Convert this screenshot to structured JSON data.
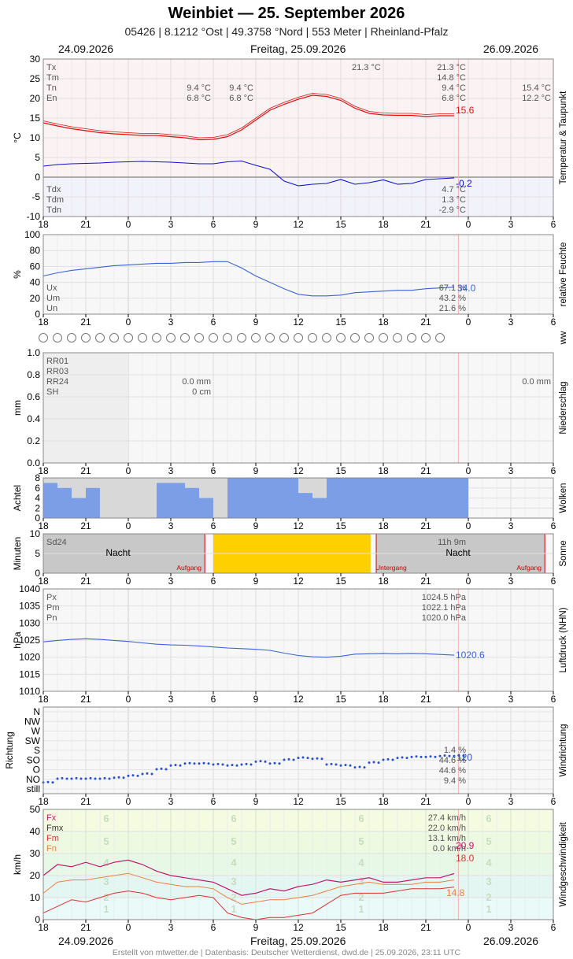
{
  "header": {
    "title": "Weinbiet  —  25. September 2026",
    "subtitle": "05426  |  8.1212 °Ost  |  49.3758 °Nord  |  553 Meter  |  Rheinland-Pfalz",
    "date_left": "24.09.2026",
    "date_center": "Freitag, 25.09.2026",
    "date_right": "26.09.2026"
  },
  "footer": "Erstellt von mtwetter.de | Datenbasis: Deutscher Wetterdienst, dwd.de | 25.09.2026, 23:11 UTC",
  "x_ticks": [
    "18",
    "21",
    "0",
    "3",
    "6",
    "9",
    "12",
    "15",
    "18",
    "21",
    "0",
    "3",
    "6"
  ],
  "colors": {
    "temp": "#e01010",
    "dew": "#1010d0",
    "hum": "#3a64d8",
    "cloud": "#7b9ee6",
    "sun": "#ffd000",
    "press": "#3a64d8",
    "wind_dir": "#2a50d0",
    "fx": "#c0186c",
    "fmx": "#c0186c",
    "fm": "#e03030",
    "fn": "#f08040"
  },
  "chart_data": [
    {
      "type": "line",
      "name": "temperature",
      "ylabel": "°C",
      "right_label": "Temperatur & Taupunkt",
      "ylim": [
        -10,
        30
      ],
      "y_ticks": [
        "30",
        "25",
        "20",
        "15",
        "10",
        "5",
        "0",
        "-5",
        "-10"
      ],
      "legend_top": [
        "Tx",
        "Tm",
        "Tn",
        "En"
      ],
      "legend_bottom": [
        "Tdx",
        "Tdm",
        "Tdn"
      ],
      "annotations": {
        "tx_mid": "21.3 °C",
        "tx": "21.3 °C",
        "tm": "14.8 °C",
        "tn": "9.4 °C",
        "en": "6.8 °C",
        "tn_prev1": "9.4 °C",
        "tn_prev2": "9.4 °C",
        "en_prev1": "6.8 °C",
        "en_prev2": "6.8 °C",
        "tn_next": "15.4 °C",
        "en_next": "12.2 °C",
        "tdx": "4.7 °C",
        "tdm": "1.3 °C",
        "tdn": "-2.9 °C",
        "last_temp": "15.6",
        "last_dew": "-0.2"
      },
      "series": [
        {
          "name": "temp",
          "x": [
            18,
            19,
            20,
            21,
            22,
            23,
            24,
            25,
            26,
            27,
            28,
            29,
            30,
            31,
            32,
            33,
            34,
            35,
            36,
            37,
            38,
            39,
            40,
            41,
            42,
            43,
            44,
            45,
            46,
            47
          ],
          "values": [
            13.8,
            13.0,
            12.3,
            11.8,
            11.3,
            11.0,
            10.8,
            10.6,
            10.6,
            10.3,
            10.0,
            9.5,
            9.6,
            10.3,
            12.0,
            14.5,
            17.0,
            18.5,
            19.8,
            20.8,
            20.5,
            19.5,
            17.5,
            16.2,
            15.8,
            15.7,
            15.7,
            15.4,
            15.6,
            15.6
          ]
        },
        {
          "name": "dew",
          "x": [
            18,
            19,
            20,
            21,
            22,
            23,
            24,
            25,
            26,
            27,
            28,
            29,
            30,
            31,
            32,
            33,
            34,
            35,
            36,
            37,
            38,
            39,
            40,
            41,
            42,
            43,
            44,
            45,
            46,
            47
          ],
          "values": [
            2.8,
            3.2,
            3.4,
            3.5,
            3.6,
            3.8,
            3.9,
            4.0,
            3.9,
            3.8,
            3.6,
            3.4,
            3.4,
            3.9,
            4.1,
            3.0,
            2.0,
            -1.0,
            -2.2,
            -1.8,
            -1.6,
            -0.6,
            -1.8,
            -1.4,
            -0.7,
            -1.8,
            -1.6,
            -0.6,
            -0.4,
            -0.2
          ]
        }
      ]
    },
    {
      "type": "line",
      "name": "humidity",
      "ylabel": "%",
      "right_label": "relative Feuchte",
      "ylim": [
        0,
        100
      ],
      "y_ticks": [
        "100",
        "80",
        "60",
        "40",
        "20",
        "0"
      ],
      "legend": [
        "Ux",
        "Um",
        "Un"
      ],
      "annotations": {
        "ux": "67.1 %",
        "um": "43.2 %",
        "un": "21.6 %",
        "last": "34.0"
      },
      "series": [
        {
          "name": "rh",
          "x": [
            18,
            19,
            20,
            21,
            22,
            23,
            24,
            25,
            26,
            27,
            28,
            29,
            30,
            31,
            32,
            33,
            34,
            35,
            36,
            37,
            38,
            39,
            40,
            41,
            42,
            43,
            44,
            45,
            46,
            47
          ],
          "values": [
            48,
            52,
            55,
            57,
            59,
            61,
            62,
            63,
            64,
            64,
            65,
            65,
            66,
            66,
            58,
            48,
            40,
            32,
            25,
            23,
            23,
            24,
            27,
            28,
            29,
            30,
            30,
            32,
            33,
            34
          ]
        }
      ]
    },
    {
      "type": "table",
      "name": "ww",
      "right_label": "ww",
      "count": 29
    },
    {
      "type": "bar",
      "name": "precipitation",
      "ylabel": "mm",
      "right_label": "Niederschlag",
      "ylim": [
        0,
        1.0
      ],
      "y_ticks": [
        "1.0",
        "0.8",
        "0.6",
        "0.4",
        "0.2",
        "0.0"
      ],
      "legend": [
        "RR01",
        "RR03",
        "RR24",
        "SH"
      ],
      "annotations": {
        "rr24": "0.0 mm",
        "sh": "0 cm",
        "rr24_next": "0.0 mm"
      }
    },
    {
      "type": "bar",
      "name": "clouds",
      "ylabel": "Achtel",
      "right_label": "Wolken",
      "ylim": [
        0,
        8
      ],
      "y_ticks": [
        "8",
        "6",
        "4",
        "2",
        "0"
      ],
      "x": [
        18,
        19,
        20,
        21,
        22,
        23,
        24,
        25,
        26,
        27,
        28,
        29,
        30,
        31,
        32,
        33,
        34,
        35,
        36,
        37,
        38,
        39,
        40,
        41,
        42,
        43,
        44,
        45,
        46,
        47
      ],
      "values": [
        7,
        6,
        4,
        6,
        0,
        0,
        0,
        0,
        7,
        7,
        6,
        4,
        0,
        8,
        8,
        8,
        8,
        8,
        5,
        4,
        8,
        8,
        8,
        8,
        8,
        8,
        8,
        8,
        8,
        8
      ]
    },
    {
      "type": "bar",
      "name": "sunshine",
      "ylabel": "Minuten",
      "right_label": "Sonne",
      "ylim": [
        0,
        10
      ],
      "y_ticks": [
        "10",
        "5",
        "0"
      ],
      "legend": [
        "Sd24"
      ],
      "annotations": {
        "night1": "Nacht",
        "night2": "Nacht",
        "sunrise": "Aufgang",
        "sunset": "Untergang",
        "sunrise2": "Aufgang",
        "sd24": "11h 9m"
      },
      "sunny_from": 30.0,
      "sunny_to": 41.1,
      "sunrise_at": 29.4,
      "sunset_at": 41.5,
      "sunrise2_at": 53.4
    },
    {
      "type": "line",
      "name": "pressure",
      "ylabel": "hPa",
      "right_label": "Luftdruck (NHN)",
      "ylim": [
        1010,
        1040
      ],
      "y_ticks": [
        "1040",
        "1035",
        "1030",
        "1025",
        "1020",
        "1015",
        "1010"
      ],
      "legend": [
        "Px",
        "Pm",
        "Pn"
      ],
      "annotations": {
        "px": "1024.5 hPa",
        "pm": "1022.1 hPa",
        "pn": "1020.0 hPa",
        "last": "1020.6"
      },
      "series": [
        {
          "name": "p",
          "x": [
            18,
            19,
            20,
            21,
            22,
            23,
            24,
            25,
            26,
            27,
            28,
            29,
            30,
            31,
            32,
            33,
            34,
            35,
            36,
            37,
            38,
            39,
            40,
            41,
            42,
            43,
            44,
            45,
            46,
            47
          ],
          "values": [
            1024.5,
            1024.9,
            1025.2,
            1025.4,
            1025.2,
            1024.9,
            1024.6,
            1024.2,
            1023.8,
            1023.6,
            1023.5,
            1023.3,
            1023.0,
            1022.7,
            1022.5,
            1022.3,
            1022.0,
            1021.2,
            1020.5,
            1020.1,
            1020.0,
            1020.3,
            1020.9,
            1021.0,
            1021.1,
            1021.0,
            1021.1,
            1021.0,
            1020.8,
            1020.6
          ]
        }
      ]
    },
    {
      "type": "scatter",
      "name": "wind_direction",
      "ylabel": "Richtung",
      "right_label": "Windrichtung",
      "y_ticks": [
        "N",
        "NW",
        "W",
        "SW",
        "S",
        "SO",
        "O",
        "NO",
        "still"
      ],
      "annotations": {
        "a": "1.4 %",
        "b": "44.6 %",
        "c": "44.6 %",
        "d": "9.4 %",
        "last": "120"
      },
      "x": [
        18,
        19,
        20,
        21,
        22,
        23,
        24,
        25,
        26,
        27,
        28,
        29,
        30,
        31,
        32,
        33,
        34,
        35,
        36,
        37,
        38,
        39,
        40,
        41,
        42,
        43,
        44,
        45,
        46,
        47
      ],
      "values": [
        0.6,
        1.0,
        1.0,
        1.0,
        1.0,
        1.1,
        1.3,
        1.5,
        2.0,
        2.4,
        2.6,
        2.6,
        2.5,
        2.4,
        2.5,
        2.8,
        2.6,
        3.0,
        3.2,
        3.1,
        2.5,
        2.4,
        2.2,
        2.7,
        3.0,
        3.2,
        3.3,
        3.3,
        3.4,
        3.4
      ]
    },
    {
      "type": "line",
      "name": "wind_speed",
      "ylabel": "km/h",
      "right_label": "Windgeschwindigkeit",
      "ylim": [
        0,
        50
      ],
      "y_ticks": [
        "50",
        "40",
        "30",
        "20",
        "10",
        "0"
      ],
      "legend": [
        "Fx",
        "Fmx",
        "Fm",
        "Fn"
      ],
      "beaufort": [
        "6",
        "5",
        "4",
        "3",
        "2",
        "1"
      ],
      "annotations": {
        "fx": "27.4 km/h",
        "fmx": "22.0 km/h",
        "fm": "13.1 km/h",
        "fn": "0.0 km/h",
        "last_fx": "20.9",
        "last_fm": "18.0",
        "last_fn": "14.8"
      },
      "series": [
        {
          "name": "Fx",
          "x": [
            18,
            19,
            20,
            21,
            22,
            23,
            24,
            25,
            26,
            27,
            28,
            29,
            30,
            31,
            32,
            33,
            34,
            35,
            36,
            37,
            38,
            39,
            40,
            41,
            42,
            43,
            44,
            45,
            46,
            47
          ],
          "values": [
            20,
            25,
            24,
            26,
            24,
            26,
            27,
            25,
            22,
            20,
            19,
            18,
            17,
            14,
            11,
            12,
            14,
            13,
            15,
            16,
            18,
            17,
            18,
            19,
            17,
            17,
            18,
            19,
            19,
            20.9
          ]
        },
        {
          "name": "Fm",
          "x": [
            18,
            19,
            20,
            21,
            22,
            23,
            24,
            25,
            26,
            27,
            28,
            29,
            30,
            31,
            32,
            33,
            34,
            35,
            36,
            37,
            38,
            39,
            40,
            41,
            42,
            43,
            44,
            45,
            46,
            47
          ],
          "values": [
            12,
            17,
            18,
            18,
            19,
            20,
            21,
            19,
            17,
            16,
            15,
            15,
            14,
            10,
            7,
            8,
            9,
            9,
            10,
            11,
            13,
            15,
            16,
            17,
            16,
            16,
            16,
            17,
            17,
            18.0
          ]
        },
        {
          "name": "Fn",
          "x": [
            18,
            19,
            20,
            21,
            22,
            23,
            24,
            25,
            26,
            27,
            28,
            29,
            30,
            31,
            32,
            33,
            34,
            35,
            36,
            37,
            38,
            39,
            40,
            41,
            42,
            43,
            44,
            45,
            46,
            47
          ],
          "values": [
            3,
            6,
            9,
            8,
            10,
            12,
            13,
            12,
            10,
            9,
            10,
            11,
            10,
            3,
            1,
            0,
            1,
            1,
            2,
            3,
            7,
            11,
            12,
            12,
            12,
            13,
            14,
            14,
            14,
            14.8
          ]
        }
      ]
    }
  ]
}
